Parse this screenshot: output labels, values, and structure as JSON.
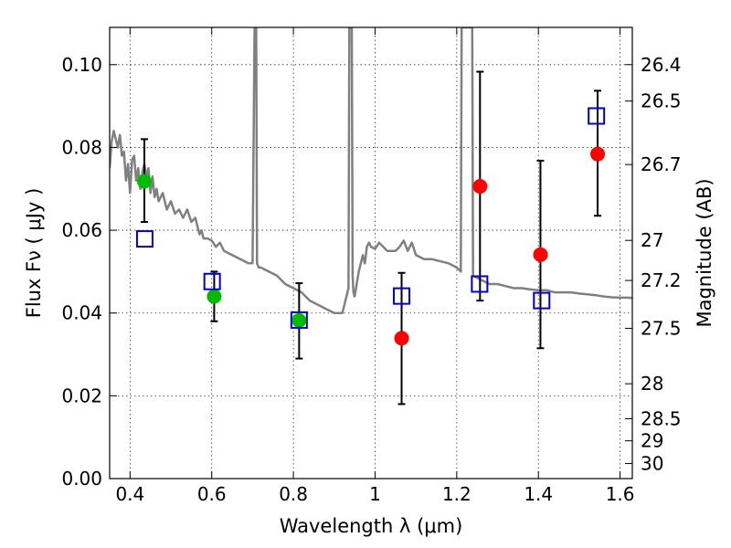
{
  "chart_data": {
    "type": "scatter",
    "xlabel": "Wavelength  λ (μm)",
    "ylabel": "Flux  Fν  ( μJy )",
    "ylabel_right": "Magnitude (AB)",
    "xlim": [
      0.35,
      1.63
    ],
    "ylim": [
      0.0,
      0.109
    ],
    "grid": true,
    "x_ticks": [
      {
        "v": 0.4,
        "label": "0.4"
      },
      {
        "v": 0.6,
        "label": "0.6"
      },
      {
        "v": 0.8,
        "label": "0.8"
      },
      {
        "v": 1.0,
        "label": "1"
      },
      {
        "v": 1.2,
        "label": "1.2"
      },
      {
        "v": 1.4,
        "label": "1.4"
      },
      {
        "v": 1.6,
        "label": "1.6"
      }
    ],
    "y_ticks": [
      {
        "v": 0.0,
        "label": "0.00"
      },
      {
        "v": 0.02,
        "label": "0.02"
      },
      {
        "v": 0.04,
        "label": "0.04"
      },
      {
        "v": 0.06,
        "label": "0.06"
      },
      {
        "v": 0.08,
        "label": "0.08"
      },
      {
        "v": 0.1,
        "label": "0.10"
      }
    ],
    "right_ticks": [
      {
        "mag": 26.4,
        "label": "26.4"
      },
      {
        "mag": 26.5,
        "label": "26.5"
      },
      {
        "mag": 26.7,
        "label": "26.7"
      },
      {
        "mag": 27.0,
        "label": "27"
      },
      {
        "mag": 27.2,
        "label": "27.2"
      },
      {
        "mag": 27.5,
        "label": "27.5"
      },
      {
        "mag": 28.0,
        "label": "28"
      },
      {
        "mag": 28.5,
        "label": "28.5"
      },
      {
        "mag": 29.0,
        "label": "29"
      },
      {
        "mag": 30.0,
        "label": "30"
      }
    ],
    "colors": {
      "sed": "#808080",
      "green_points": "#00bb00",
      "red_points": "#ff0000",
      "model_squares": "#0000cc",
      "errorbars": "#000000"
    },
    "sed_model": {
      "x": [
        0.35,
        0.355,
        0.36,
        0.365,
        0.37,
        0.375,
        0.38,
        0.385,
        0.39,
        0.395,
        0.4,
        0.405,
        0.41,
        0.415,
        0.42,
        0.425,
        0.43,
        0.435,
        0.44,
        0.445,
        0.45,
        0.455,
        0.46,
        0.465,
        0.47,
        0.475,
        0.48,
        0.49,
        0.5,
        0.51,
        0.52,
        0.53,
        0.54,
        0.55,
        0.56,
        0.57,
        0.575,
        0.58,
        0.59,
        0.6,
        0.61,
        0.62,
        0.63,
        0.65,
        0.67,
        0.69,
        0.7,
        0.705,
        0.707,
        0.709,
        0.711,
        0.715,
        0.72,
        0.74,
        0.76,
        0.78,
        0.8,
        0.82,
        0.84,
        0.86,
        0.88,
        0.9,
        0.92,
        0.935,
        0.937,
        0.939,
        0.941,
        0.943,
        0.945,
        0.947,
        0.95,
        0.96,
        0.97,
        0.975,
        0.98,
        0.985,
        0.99,
        1.0,
        1.01,
        1.02,
        1.03,
        1.04,
        1.05,
        1.06,
        1.07,
        1.08,
        1.09,
        1.1,
        1.12,
        1.14,
        1.16,
        1.18,
        1.2,
        1.21,
        1.212,
        1.214,
        1.23,
        1.236,
        1.238,
        1.24,
        1.26,
        1.28,
        1.3,
        1.32,
        1.34,
        1.36,
        1.38,
        1.4,
        1.42,
        1.44,
        1.46,
        1.48,
        1.5,
        1.52,
        1.54,
        1.56,
        1.58,
        1.6,
        1.62,
        1.63
      ],
      "y": [
        0.075,
        0.0815,
        0.084,
        0.082,
        0.08,
        0.083,
        0.078,
        0.079,
        0.072,
        0.076,
        0.069,
        0.077,
        0.078,
        0.072,
        0.075,
        0.07,
        0.074,
        0.076,
        0.073,
        0.075,
        0.069,
        0.073,
        0.068,
        0.07,
        0.067,
        0.068,
        0.069,
        0.065,
        0.067,
        0.064,
        0.065,
        0.063,
        0.065,
        0.062,
        0.063,
        0.059,
        0.06,
        0.058,
        0.058,
        0.0575,
        0.056,
        0.057,
        0.055,
        0.054,
        0.053,
        0.052,
        0.052,
        0.109,
        0.109,
        0.109,
        0.052,
        0.051,
        0.051,
        0.05,
        0.049,
        0.047,
        0.046,
        0.045,
        0.043,
        0.042,
        0.041,
        0.04,
        0.04,
        0.046,
        0.109,
        0.109,
        0.109,
        0.109,
        0.049,
        0.045,
        0.044,
        0.05,
        0.054,
        0.052,
        0.056,
        0.057,
        0.056,
        0.0555,
        0.057,
        0.056,
        0.055,
        0.055,
        0.055,
        0.056,
        0.0575,
        0.055,
        0.057,
        0.054,
        0.053,
        0.053,
        0.0525,
        0.052,
        0.051,
        0.05,
        0.109,
        0.109,
        0.109,
        0.109,
        0.109,
        0.049,
        0.048,
        0.047,
        0.047,
        0.0465,
        0.046,
        0.046,
        0.0457,
        0.0455,
        0.0455,
        0.045,
        0.045,
        0.045,
        0.0447,
        0.0445,
        0.0443,
        0.044,
        0.0438,
        0.0437,
        0.0437,
        0.0436
      ]
    },
    "observed_green": [
      {
        "x": 0.435,
        "y": 0.0718,
        "err_low": 0.062,
        "err_high": 0.082
      },
      {
        "x": 0.606,
        "y": 0.044,
        "err_low": 0.038,
        "err_high": 0.05
      },
      {
        "x": 0.814,
        "y": 0.0382,
        "err_low": 0.029,
        "err_high": 0.0472
      }
    ],
    "observed_red": [
      {
        "x": 1.065,
        "y": 0.0339,
        "err_low": 0.018,
        "err_high": 0.0497
      },
      {
        "x": 1.257,
        "y": 0.0706,
        "err_low": 0.043,
        "err_high": 0.0983
      },
      {
        "x": 1.405,
        "y": 0.0541,
        "err_low": 0.0315,
        "err_high": 0.0768
      },
      {
        "x": 1.545,
        "y": 0.0784,
        "err_low": 0.0635,
        "err_high": 0.0937
      }
    ],
    "model_photometry": [
      {
        "x": 0.436,
        "y": 0.0579
      },
      {
        "x": 0.601,
        "y": 0.0476
      },
      {
        "x": 0.814,
        "y": 0.0383
      },
      {
        "x": 1.065,
        "y": 0.0441
      },
      {
        "x": 1.256,
        "y": 0.047
      },
      {
        "x": 1.408,
        "y": 0.043
      },
      {
        "x": 1.542,
        "y": 0.0876
      }
    ]
  }
}
